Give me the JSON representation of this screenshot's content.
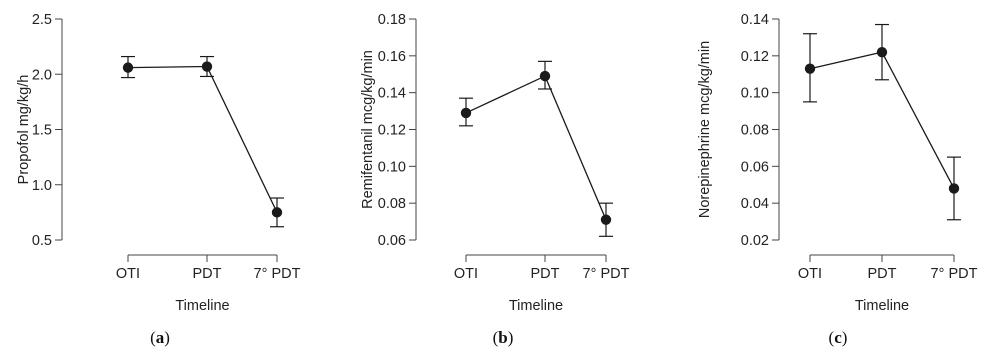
{
  "chart_data": [
    {
      "type": "line",
      "panel_label": "a",
      "xlabel": "Timeline",
      "ylabel": "Propofol mg/kg/h",
      "categories": [
        "OTI",
        "PDT",
        "7° PDT"
      ],
      "values": [
        2.06,
        2.07,
        0.75
      ],
      "error_lower": [
        1.97,
        1.98,
        0.62
      ],
      "error_upper": [
        2.16,
        2.16,
        0.88
      ],
      "ylim": [
        0.5,
        2.5
      ],
      "yticks": [
        "0.5",
        "1.0",
        "1.5",
        "2.0",
        "2.5"
      ],
      "grid": false,
      "color": "#1a1a1a"
    },
    {
      "type": "line",
      "panel_label": "b",
      "xlabel": "Timeline",
      "ylabel": "Remifentanil mcg/kg/min",
      "categories": [
        "OTI",
        "PDT",
        "7° PDT"
      ],
      "values": [
        0.129,
        0.149,
        0.071
      ],
      "error_lower": [
        0.122,
        0.142,
        0.062
      ],
      "error_upper": [
        0.137,
        0.157,
        0.08
      ],
      "ylim": [
        0.06,
        0.18
      ],
      "yticks": [
        "0.06",
        "0.08",
        "0.10",
        "0.12",
        "0.14",
        "0.16",
        "0.18"
      ],
      "grid": false,
      "color": "#1a1a1a"
    },
    {
      "type": "line",
      "panel_label": "c",
      "xlabel": "Timeline",
      "ylabel": "Norepinephrine mcg/kg/min",
      "categories": [
        "OTI",
        "PDT",
        "7° PDT"
      ],
      "values": [
        0.113,
        0.122,
        0.048
      ],
      "error_lower": [
        0.095,
        0.107,
        0.031
      ],
      "error_upper": [
        0.132,
        0.137,
        0.065
      ],
      "ylim": [
        0.02,
        0.14
      ],
      "yticks": [
        "0.02",
        "0.04",
        "0.06",
        "0.08",
        "0.10",
        "0.12",
        "0.14"
      ],
      "grid": false,
      "color": "#1a1a1a"
    }
  ]
}
